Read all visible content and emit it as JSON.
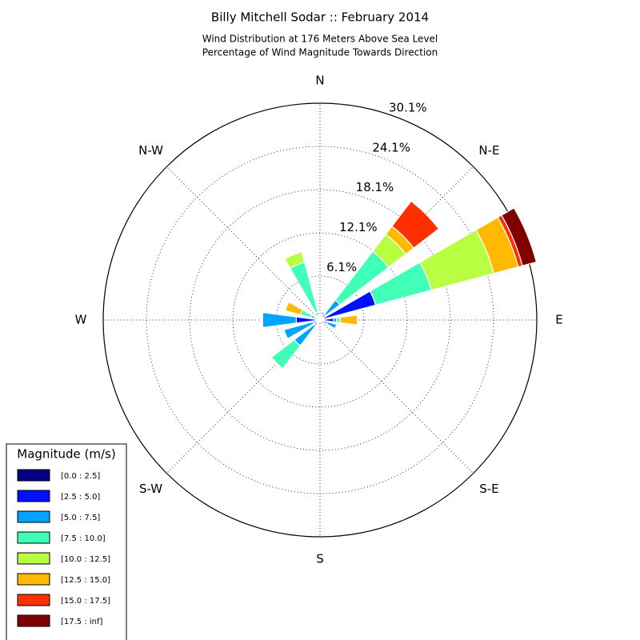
{
  "chart_data": {
    "type": "windrose",
    "title": "Billy Mitchell Sodar :: February 2014",
    "subtitle": [
      "Wind Distribution at 176 Meters Above Sea Level",
      "Percentage of Wind Magnitude Towards Direction"
    ],
    "theta_labels": [
      "N",
      "N-E",
      "E",
      "S-E",
      "S",
      "S-W",
      "W",
      "N-W"
    ],
    "x": [
      0,
      22.5,
      45,
      67.5,
      90,
      112.5,
      135,
      157.5,
      180,
      202.5,
      225,
      247.5,
      270,
      292.5,
      315,
      337.5
    ],
    "ylim": [
      0,
      30.1
    ],
    "yticks": [
      {
        "value": 6.1,
        "label": "6.1%"
      },
      {
        "value": 12.1,
        "label": "12.1%"
      },
      {
        "value": 18.1,
        "label": "18.1%"
      },
      {
        "value": 24.1,
        "label": "24.1%"
      },
      {
        "value": 30.1,
        "label": "30.1%"
      }
    ],
    "grid": true,
    "legend_title": "Magnitude (m/s)",
    "legend": "lower left",
    "series": [
      {
        "name": "[0.0 : 2.5]",
        "color": "#000080",
        "values": [
          0.2,
          0.3,
          0.5,
          0.5,
          0.4,
          0.3,
          0.2,
          0.1,
          0.1,
          0.2,
          0.3,
          0.3,
          0.5,
          0.3,
          0.2,
          0.3
        ]
      },
      {
        "name": "[2.5 : 5.0]",
        "color": "#0010ff",
        "values": [
          0.3,
          0.5,
          0.5,
          7.5,
          1.5,
          0.8,
          0.1,
          0,
          0,
          0.2,
          0.7,
          0.7,
          2.8,
          0.5,
          0.2,
          0.3
        ]
      },
      {
        "name": "[5.0 : 7.5]",
        "color": "#00a4ff",
        "values": [
          0,
          0.4,
          2.5,
          0,
          0.4,
          1.3,
          0,
          0,
          0,
          0.2,
          3.5,
          4.2,
          4.7,
          0.5,
          0.1,
          0.5
        ]
      },
      {
        "name": "[7.5 : 10.0]",
        "color": "#40ffb7",
        "values": [
          0,
          0,
          8.5,
          8.0,
          0.5,
          0,
          0,
          0,
          0,
          0,
          4.0,
          0,
          0,
          1.5,
          0,
          7.2
        ]
      },
      {
        "name": "[10.0 : 12.5]",
        "color": "#b7ff40",
        "values": [
          0,
          0,
          3.0,
          9.0,
          0,
          0,
          0,
          0,
          0,
          0,
          0,
          0,
          0,
          0,
          0,
          1.5
        ]
      },
      {
        "name": "[12.5 : 15.0]",
        "color": "#ffb900",
        "values": [
          0,
          0,
          1.4,
          3.5,
          2.4,
          0,
          0,
          0,
          0,
          0,
          0,
          0,
          0,
          2.2,
          0,
          0
        ]
      },
      {
        "name": "[15.0 : 17.5]",
        "color": "#ff3000",
        "values": [
          0,
          0,
          4.4,
          0.6,
          0,
          0,
          0,
          0,
          0,
          0,
          0,
          0,
          0,
          0,
          0,
          0
        ]
      },
      {
        "name": "[17.5 : inf]",
        "color": "#800000",
        "values": [
          0,
          0,
          0,
          2.0,
          0,
          0,
          0,
          0,
          0,
          0,
          0,
          0,
          0,
          0,
          0,
          0
        ]
      }
    ]
  }
}
